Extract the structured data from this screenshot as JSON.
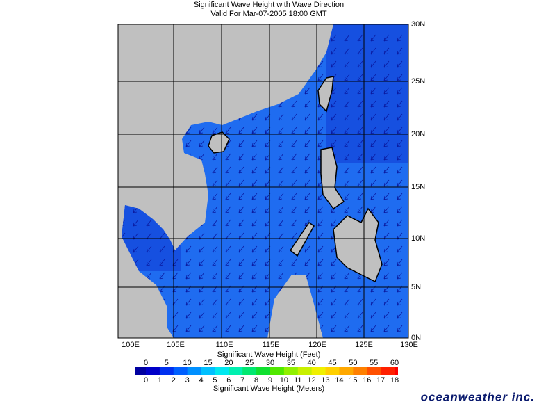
{
  "map": {
    "title": "Significant Wave Height with Wave Direction",
    "subtitle": "Valid For Mar-07-2005 18:00 GMT",
    "lon_labels": [
      "100E",
      "105E",
      "110E",
      "115E",
      "120E",
      "125E",
      "130E"
    ],
    "lat_labels": [
      "30N",
      "25N",
      "20N",
      "15N",
      "10N",
      "5N",
      "0N"
    ],
    "colorbar": {
      "feet_label": "Significant Wave Height (Feet)",
      "feet_ticks": [
        "0",
        "5",
        "10",
        "15",
        "20",
        "25",
        "30",
        "35",
        "40",
        "45",
        "50",
        "55",
        "60"
      ],
      "meters_ticks": [
        "0",
        "1",
        "2",
        "3",
        "4",
        "5",
        "6",
        "7",
        "8",
        "9",
        "10",
        "11",
        "12",
        "13",
        "14",
        "15",
        "16",
        "17",
        "18"
      ],
      "meters_label": "Significant Wave Height (Meters)"
    },
    "logo": "oceanweather inc."
  }
}
